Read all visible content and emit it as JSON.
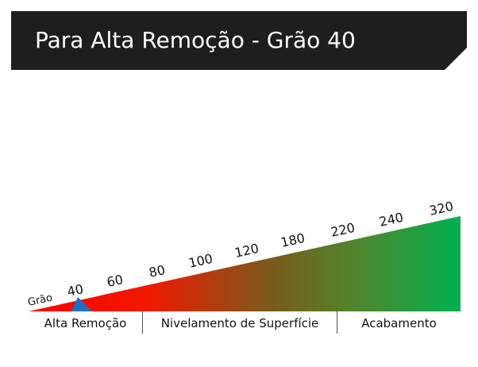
{
  "header": {
    "title": "Para Alta Remoção - Grão 40"
  },
  "scale": {
    "grao_label": "Grão",
    "grits": [
      "40",
      "60",
      "80",
      "100",
      "120",
      "180",
      "220",
      "240",
      "320"
    ],
    "selected_grit": "40",
    "gradient_colors": [
      "#ff0000",
      "#ee1a00",
      "#7a5a1c",
      "#4a8a30",
      "#00b050"
    ],
    "marker_color": "#1f6fc2"
  },
  "sections": [
    {
      "label": "Alta Remoção"
    },
    {
      "label": "Nivelamento de Superfície"
    },
    {
      "label": "Acabamento"
    }
  ]
}
